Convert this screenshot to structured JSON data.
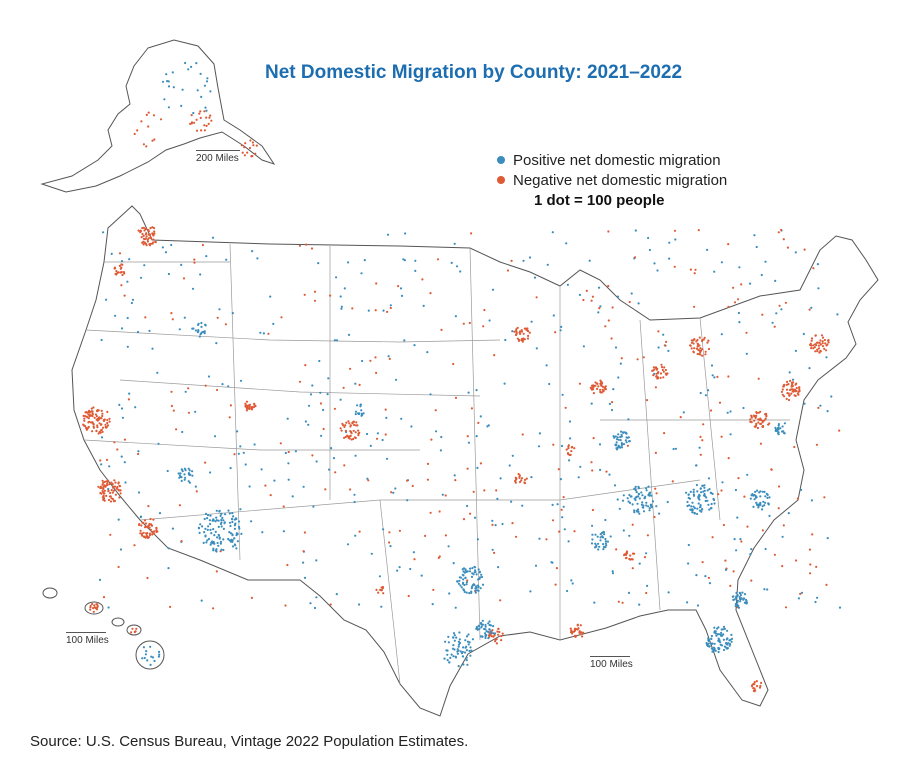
{
  "title": "Net Domestic Migration by County: 2021–2022",
  "legend": {
    "positive": {
      "label": "Positive net domestic migration",
      "color": "#3b8dbd"
    },
    "negative": {
      "label": "Negative net domestic migration",
      "color": "#de5a35"
    },
    "dot_value": "1 dot = 100 people"
  },
  "scales": {
    "alaska": "200 Miles",
    "hawaii": "100 Miles",
    "mainland": "100 Miles"
  },
  "source": "Source: U.S. Census Bureau, Vintage 2022 Population Estimates."
}
